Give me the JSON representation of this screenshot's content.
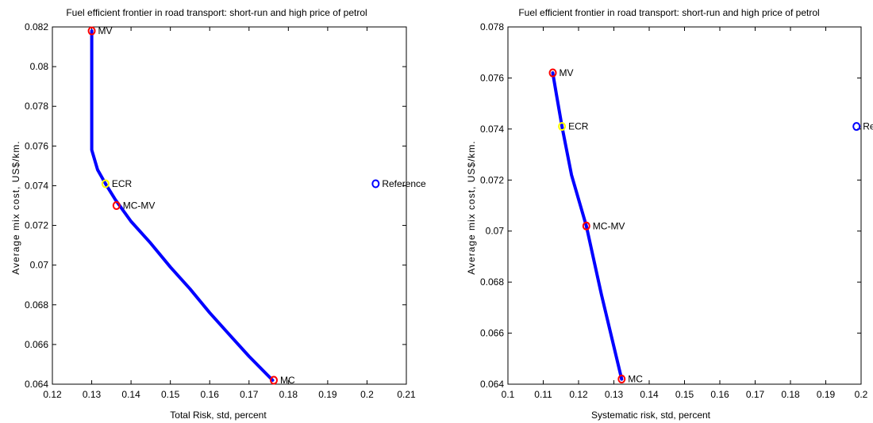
{
  "chart_data": [
    {
      "type": "line",
      "title": "Fuel efficient frontier in road transport: short-run and high price of petrol",
      "xlabel": "Total Risk, std, percent",
      "ylabel": "Average mix cost, US$/km.",
      "xlim": [
        0.12,
        0.21
      ],
      "ylim": [
        0.064,
        0.082
      ],
      "xticks": [
        0.12,
        0.13,
        0.14,
        0.15,
        0.16,
        0.17,
        0.18,
        0.19,
        0.2,
        0.21
      ],
      "xtick_labels": [
        "0.12",
        "0.13",
        "0.14",
        "0.15",
        "0.16",
        "0.17",
        "0.18",
        "0.19",
        "0.2",
        "0.21"
      ],
      "yticks": [
        0.064,
        0.066,
        0.068,
        0.07,
        0.072,
        0.074,
        0.076,
        0.078,
        0.08,
        0.082
      ],
      "ytick_labels": [
        "0.064",
        "0.066",
        "0.068",
        "0.07",
        "0.072",
        "0.074",
        "0.076",
        "0.078",
        "0.08",
        "0.082"
      ],
      "grid": false,
      "series": [
        {
          "color": "#0000ff",
          "x": [
            0.13,
            0.13,
            0.1315,
            0.1335,
            0.136,
            0.14,
            0.145,
            0.15,
            0.155,
            0.16,
            0.165,
            0.17,
            0.176
          ],
          "y": [
            0.0818,
            0.0758,
            0.0748,
            0.0741,
            0.0733,
            0.0722,
            0.0711,
            0.0699,
            0.0688,
            0.0676,
            0.0665,
            0.0654,
            0.0642
          ]
        }
      ],
      "points": [
        {
          "label": "MV",
          "x": 0.13,
          "y": 0.0818,
          "color": "#ff0000"
        },
        {
          "label": "ECR",
          "x": 0.1335,
          "y": 0.0741,
          "color": "#ffff00"
        },
        {
          "label": "MC-MV",
          "x": 0.1363,
          "y": 0.073,
          "color": "#ff0000"
        },
        {
          "label": "MC",
          "x": 0.1763,
          "y": 0.0642,
          "color": "#ff0000"
        },
        {
          "label": "Reference",
          "x": 0.2022,
          "y": 0.0741,
          "color": "#0000ff"
        }
      ]
    },
    {
      "type": "line",
      "title": "Fuel efficient frontier in road transport: short-run and high price of petrol",
      "xlabel": "Systematic risk, std, percent",
      "ylabel": "Average mix cost, US$/km.",
      "xlim": [
        0.1,
        0.2
      ],
      "ylim": [
        0.064,
        0.078
      ],
      "xticks": [
        0.1,
        0.11,
        0.12,
        0.13,
        0.14,
        0.15,
        0.16,
        0.17,
        0.18,
        0.19,
        0.2
      ],
      "xtick_labels": [
        "0.1",
        "0.11",
        "0.12",
        "0.13",
        "0.14",
        "0.15",
        "0.16",
        "0.17",
        "0.18",
        "0.19",
        "0.2"
      ],
      "yticks": [
        0.064,
        0.066,
        0.068,
        0.07,
        0.072,
        0.074,
        0.076,
        0.078
      ],
      "ytick_labels": [
        "0.064",
        "0.066",
        "0.068",
        "0.07",
        "0.072",
        "0.074",
        "0.076",
        "0.078"
      ],
      "grid": false,
      "series": [
        {
          "color": "#0000ff",
          "x": [
            0.1127,
            0.1138,
            0.1153,
            0.118,
            0.1222,
            0.1265,
            0.1322
          ],
          "y": [
            0.0762,
            0.0753,
            0.0741,
            0.0722,
            0.0702,
            0.0675,
            0.0642
          ]
        }
      ],
      "points": [
        {
          "label": "MV",
          "x": 0.1127,
          "y": 0.0762,
          "color": "#ff0000"
        },
        {
          "label": "ECR",
          "x": 0.1153,
          "y": 0.0741,
          "color": "#ffff00"
        },
        {
          "label": "MC-MV",
          "x": 0.1222,
          "y": 0.0702,
          "color": "#ff0000"
        },
        {
          "label": "MC",
          "x": 0.1322,
          "y": 0.0642,
          "color": "#ff0000"
        },
        {
          "label": "Referenc",
          "x": 0.1987,
          "y": 0.0741,
          "color": "#0000ff"
        }
      ]
    }
  ]
}
